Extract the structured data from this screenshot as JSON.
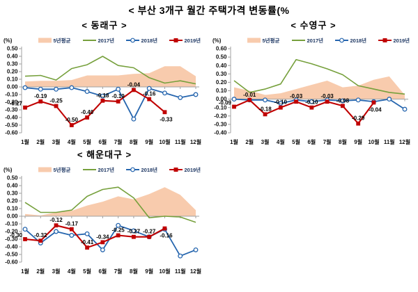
{
  "page": {
    "title": "< 부산 3개구 월간 주택가격 변동률(%"
  },
  "colors": {
    "area": "#F8CBAD",
    "green": "#76A03C",
    "blue": "#2565AE",
    "red": "#C00000",
    "axis": "#A0A0A0",
    "tick_text": "#111111",
    "legend_text": "#1F3864",
    "label_text": "#000000",
    "background": "#FFFFFF"
  },
  "chart_data": [
    {
      "type": "line",
      "title": "< 동래구 >",
      "unit_label": "(%)",
      "categories": [
        "1월",
        "2월",
        "3월",
        "4월",
        "5월",
        "6월",
        "7월",
        "8월",
        "9월",
        "10월",
        "11월",
        "12월"
      ],
      "ylim": [
        -0.6,
        0.5
      ],
      "ytick_step": 0.1,
      "grid": "zero-line-only",
      "legend_position": "top",
      "series": [
        {
          "name": "5년평균",
          "type": "area",
          "color_key": "area",
          "values": [
            0.07,
            0.08,
            0.08,
            0.09,
            0.15,
            0.15,
            0.15,
            0.17,
            0.18,
            0.27,
            0.27,
            0.14
          ]
        },
        {
          "name": "2017년",
          "type": "line",
          "marker": "none",
          "color_key": "green",
          "values": [
            0.14,
            0.15,
            0.09,
            0.24,
            0.29,
            0.4,
            0.28,
            0.25,
            0.12,
            0.05,
            0.08,
            0.04
          ]
        },
        {
          "name": "2018년",
          "type": "line",
          "marker": "circle-open",
          "color_key": "blue",
          "values": [
            -0.01,
            -0.03,
            -0.03,
            -0.01,
            -0.06,
            -0.12,
            -0.03,
            -0.42,
            -0.02,
            -0.08,
            -0.14,
            -0.1
          ]
        },
        {
          "name": "2019년",
          "type": "line",
          "marker": "square",
          "color_key": "red",
          "data_labels": true,
          "values": [
            -0.27,
            -0.19,
            -0.25,
            -0.5,
            -0.4,
            -0.18,
            -0.19,
            -0.04,
            -0.16,
            -0.33
          ]
        }
      ]
    },
    {
      "type": "line",
      "title": "< 수영구 >",
      "unit_label": "(%)",
      "categories": [
        "1월",
        "2월",
        "3월",
        "4월",
        "5월",
        "6월",
        "7월",
        "8월",
        "9월",
        "10월",
        "11월",
        "12월"
      ],
      "ylim": [
        -0.4,
        0.6
      ],
      "ytick_step": 0.1,
      "grid": "zero-line-only",
      "legend_position": "top",
      "series": [
        {
          "name": "5년평균",
          "type": "area",
          "color_key": "area",
          "values": [
            0.14,
            0.1,
            0.05,
            0.07,
            0.12,
            0.17,
            0.22,
            0.14,
            0.16,
            0.23,
            0.27,
            0.05
          ]
        },
        {
          "name": "2017년",
          "type": "line",
          "marker": "none",
          "color_key": "green",
          "values": [
            0.22,
            0.08,
            0.12,
            0.18,
            0.47,
            0.42,
            0.36,
            0.29,
            0.16,
            0.12,
            0.08,
            0.06
          ]
        },
        {
          "name": "2018년",
          "type": "line",
          "marker": "circle-open",
          "color_key": "blue",
          "values": [
            0.0,
            -0.01,
            -0.01,
            -0.05,
            -0.01,
            -0.03,
            -0.01,
            -0.02,
            -0.01,
            -0.03,
            0.0,
            -0.12
          ]
        },
        {
          "name": "2019년",
          "type": "line",
          "marker": "square",
          "color_key": "red",
          "data_labels": true,
          "values": [
            -0.09,
            -0.01,
            -0.18,
            -0.1,
            -0.03,
            -0.1,
            -0.03,
            -0.08,
            -0.29,
            -0.04
          ]
        }
      ]
    },
    {
      "type": "line",
      "title": "< 해운대구 >",
      "unit_label": "(%)",
      "categories": [
        "1월",
        "2월",
        "3월",
        "4월",
        "5월",
        "6월",
        "7월",
        "8월",
        "9월",
        "10월",
        "11월",
        "12월"
      ],
      "ylim": [
        -0.6,
        0.5
      ],
      "ytick_step": 0.1,
      "grid": "zero-line-only",
      "legend_position": "top",
      "series": [
        {
          "name": "5년평균",
          "type": "area",
          "color_key": "area",
          "values": [
            0.03,
            0.01,
            0.05,
            0.07,
            0.14,
            0.19,
            0.26,
            0.22,
            0.29,
            0.38,
            0.28,
            0.08
          ]
        },
        {
          "name": "2017년",
          "type": "line",
          "marker": "none",
          "color_key": "green",
          "values": [
            0.18,
            0.05,
            0.05,
            0.08,
            0.26,
            0.35,
            0.38,
            0.24,
            -0.02,
            0.0,
            -0.01,
            -0.08
          ]
        },
        {
          "name": "2018년",
          "type": "line",
          "marker": "circle-open",
          "color_key": "blue",
          "values": [
            -0.17,
            -0.35,
            -0.2,
            -0.25,
            -0.23,
            -0.44,
            -0.12,
            -0.19,
            -0.27,
            -0.17,
            -0.52,
            -0.44
          ]
        },
        {
          "name": "2019년",
          "type": "line",
          "marker": "square",
          "color_key": "red",
          "data_labels": true,
          "values": [
            -0.3,
            -0.32,
            -0.12,
            -0.17,
            -0.41,
            -0.34,
            -0.25,
            -0.27,
            -0.27,
            -0.16
          ]
        }
      ]
    }
  ]
}
